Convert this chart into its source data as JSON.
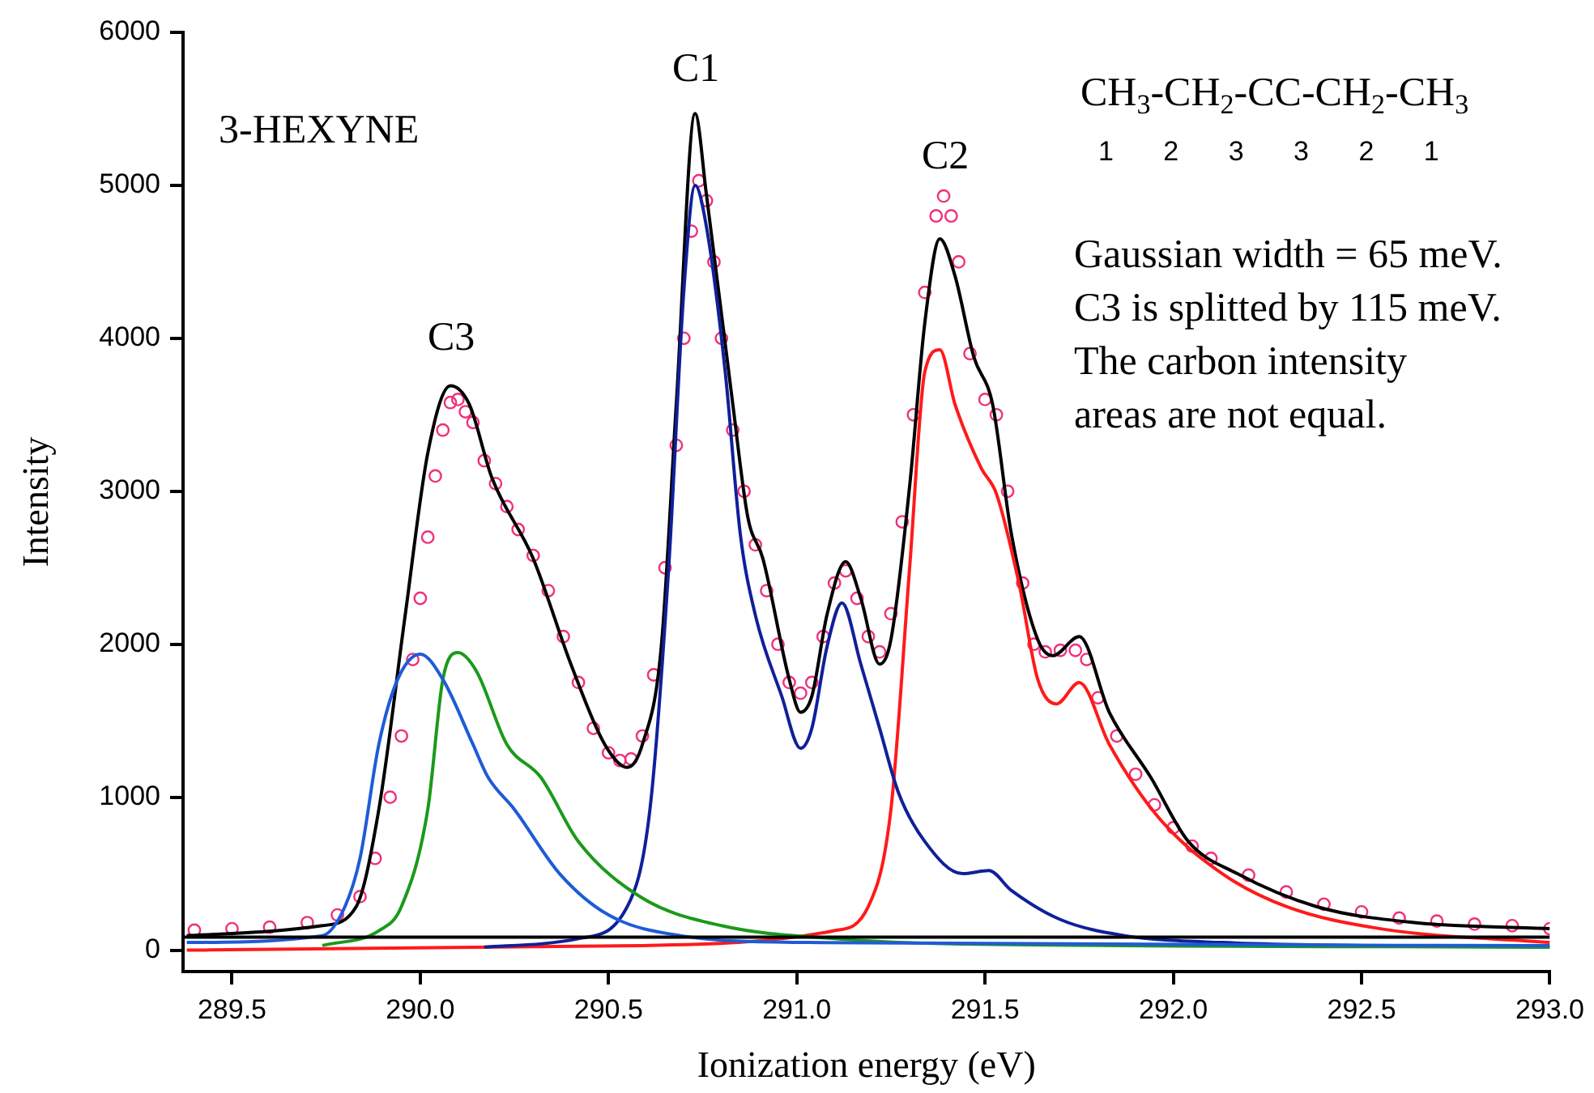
{
  "chart_data": {
    "type": "line",
    "xlabel": "Ionization energy (eV)",
    "ylabel": "Intensity",
    "xlim": [
      289.37,
      293.0
    ],
    "ylim": [
      -140,
      6000
    ],
    "xticks": [
      289.5,
      {
        "value": 290,
        "label": "290.0"
      },
      290.5,
      {
        "value": 291,
        "label": "291.0"
      },
      291.5,
      {
        "value": 292,
        "label": "292.0"
      },
      292.5,
      {
        "value": 293,
        "label": "293.0"
      }
    ],
    "yticks": [
      0,
      1000,
      2000,
      3000,
      4000,
      5000,
      6000
    ],
    "grid": false,
    "legend": false,
    "annotations": [
      "3-HEXYNE",
      "CH$_{3}$-CH$_{2}$-CC-CH$_{2}$-CH$_{3}$",
      "1 2 3 3 2 1",
      "Gaussian width = 65 meV.",
      "C3 is splitted by 115 meV.",
      "The carbon intensity",
      "areas are not equal.",
      "C3",
      "C1",
      "C2"
    ],
    "series": [
      {
        "color": "#000000",
        "marker": "none",
        "x": [
          289.37,
          293.0
        ],
        "values": [
          85,
          85
        ]
      },
      {
        "color": "#1e5bd8",
        "marker": "none",
        "x": [
          289.38,
          289.74,
          289.8,
          289.84,
          289.89,
          289.94,
          290.0,
          290.06,
          290.14,
          290.18,
          290.25,
          290.37,
          290.5,
          290.69,
          291.03,
          293.0
        ],
        "values": [
          50,
          95,
          285,
          600,
          1345,
          1770,
          1935,
          1770,
          1345,
          1130,
          920,
          500,
          230,
          95,
          50,
          30
        ]
      },
      {
        "color": "#1a9a1a",
        "marker": "none",
        "x": [
          289.74,
          289.89,
          289.95,
          290.02,
          290.06,
          290.1,
          290.15,
          290.23,
          290.32,
          290.42,
          290.59,
          290.8,
          291.1,
          291.44,
          293.0
        ],
        "values": [
          30,
          127,
          285,
          920,
          1770,
          1945,
          1820,
          1345,
          1130,
          710,
          340,
          160,
          75,
          40,
          20
        ]
      },
      {
        "color": "#10209a",
        "marker": "none",
        "x": [
          290.17,
          290.42,
          290.55,
          290.61,
          290.66,
          290.7,
          290.73,
          290.76,
          290.81,
          290.85,
          290.89,
          290.96,
          291.01,
          291.04,
          291.08,
          291.12,
          291.17,
          291.22,
          291.27,
          291.34,
          291.44,
          291.51,
          291.57,
          291.7,
          291.87,
          292.13,
          293.0
        ],
        "values": [
          20,
          75,
          285,
          920,
          2510,
          4310,
          5000,
          4730,
          3780,
          2720,
          2190,
          1660,
          1320,
          1450,
          1980,
          2270,
          1870,
          1450,
          1030,
          710,
          500,
          520,
          390,
          200,
          95,
          50,
          20
        ]
      },
      {
        "color": "#ff1a1a",
        "marker": "none",
        "x": [
          289.38,
          290.59,
          291.1,
          291.19,
          291.25,
          291.3,
          291.34,
          291.38,
          291.42,
          291.49,
          291.53,
          291.59,
          291.64,
          291.69,
          291.75,
          291.83,
          291.96,
          292.13,
          292.3,
          292.55,
          293.0
        ],
        "values": [
          0,
          30,
          127,
          285,
          920,
          2510,
          3780,
          3925,
          3570,
          3150,
          2985,
          2400,
          1770,
          1610,
          1750,
          1345,
          870,
          500,
          285,
          140,
          50
        ]
      },
      {
        "color": "#000000",
        "marker": "none",
        "x": [
          289.38,
          289.74,
          289.83,
          289.89,
          289.96,
          290.02,
          290.08,
          290.13,
          290.19,
          290.3,
          290.4,
          290.49,
          290.55,
          290.59,
          290.64,
          290.68,
          290.73,
          290.76,
          290.83,
          290.87,
          290.91,
          290.98,
          291.01,
          291.04,
          291.08,
          291.13,
          291.17,
          291.22,
          291.25,
          291.3,
          291.34,
          291.38,
          291.42,
          291.47,
          291.52,
          291.57,
          291.64,
          291.68,
          291.75,
          291.83,
          291.94,
          292.04,
          292.17,
          292.38,
          292.64,
          293.0
        ],
        "values": [
          95,
          160,
          285,
          920,
          2190,
          3250,
          3690,
          3570,
          3090,
          2560,
          1870,
          1345,
          1195,
          1345,
          1980,
          3570,
          5470,
          4940,
          3570,
          2830,
          2560,
          1770,
          1555,
          1660,
          2190,
          2540,
          2300,
          1870,
          2030,
          3040,
          4100,
          4650,
          4410,
          3880,
          3570,
          2720,
          2030,
          1925,
          2050,
          1555,
          1130,
          710,
          500,
          285,
          180,
          140
        ]
      },
      {
        "type": "scatter",
        "color": "#f0307a",
        "marker": "circle",
        "x": [
          289.4,
          289.5,
          289.6,
          289.7,
          289.78,
          289.84,
          289.88,
          289.92,
          289.95,
          289.98,
          290.0,
          290.02,
          290.04,
          290.06,
          290.08,
          290.1,
          290.12,
          290.14,
          290.17,
          290.2,
          290.23,
          290.26,
          290.3,
          290.34,
          290.38,
          290.42,
          290.46,
          290.5,
          290.53,
          290.56,
          290.59,
          290.62,
          290.65,
          290.68,
          290.7,
          290.72,
          290.74,
          290.76,
          290.78,
          290.8,
          290.83,
          290.86,
          290.89,
          290.92,
          290.95,
          290.98,
          291.01,
          291.04,
          291.07,
          291.1,
          291.13,
          291.16,
          291.19,
          291.22,
          291.25,
          291.28,
          291.31,
          291.34,
          291.37,
          291.39,
          291.41,
          291.43,
          291.46,
          291.5,
          291.53,
          291.56,
          291.6,
          291.63,
          291.66,
          291.7,
          291.74,
          291.77,
          291.8,
          291.85,
          291.9,
          291.95,
          292.0,
          292.05,
          292.1,
          292.2,
          292.3,
          292.4,
          292.5,
          292.6,
          292.7,
          292.8,
          292.9,
          293.0
        ],
        "values": [
          130,
          140,
          150,
          180,
          230,
          350,
          600,
          1000,
          1400,
          1900,
          2300,
          2700,
          3100,
          3400,
          3580,
          3600,
          3520,
          3450,
          3200,
          3050,
          2900,
          2750,
          2580,
          2350,
          2050,
          1750,
          1450,
          1290,
          1240,
          1250,
          1400,
          1800,
          2500,
          3300,
          4000,
          4700,
          5030,
          4900,
          4500,
          4000,
          3400,
          3000,
          2650,
          2350,
          2000,
          1750,
          1680,
          1750,
          2050,
          2400,
          2480,
          2300,
          2050,
          1950,
          2200,
          2800,
          3500,
          4300,
          4800,
          4930,
          4800,
          4500,
          3900,
          3600,
          3500,
          3000,
          2400,
          2000,
          1950,
          1960,
          1960,
          1900,
          1650,
          1400,
          1150,
          950,
          800,
          680,
          600,
          490,
          380,
          300,
          250,
          210,
          190,
          170,
          160,
          140
        ]
      }
    ]
  }
}
